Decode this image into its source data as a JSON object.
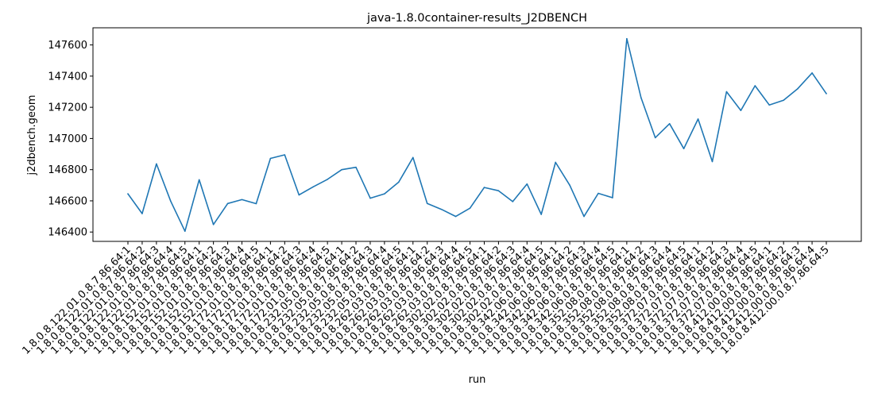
{
  "chart_data": {
    "type": "line",
    "title": "java-1.8.0container-results_J2DBENCH",
    "xlabel": "run",
    "ylabel": "j2dbench.geom",
    "ylim": [
      146340,
      147710
    ],
    "yticks": [
      146400,
      146600,
      146800,
      147000,
      147200,
      147400,
      147600
    ],
    "grid": false,
    "line_color": "#1f77b4",
    "categories": [
      "1.8.0.8.122.01.0.8.7.86.64:1",
      "1.8.0.8.122.01.0.8.7.86.64:2",
      "1.8.0.8.122.01.0.8.7.86.64:3",
      "1.8.0.8.122.01.0.8.7.86.64:4",
      "1.8.0.8.122.01.0.8.7.86.64:5",
      "1.8.0.8.152.01.0.8.7.86.64:1",
      "1.8.0.8.152.01.0.8.7.86.64:2",
      "1.8.0.8.152.01.0.8.7.86.64:3",
      "1.8.0.8.152.01.0.8.7.86.64:4",
      "1.8.0.8.152.01.0.8.7.86.64:5",
      "1.8.0.8.172.01.0.8.7.86.64:1",
      "1.8.0.8.172.01.0.8.7.86.64:2",
      "1.8.0.8.172.01.0.8.7.86.64:3",
      "1.8.0.8.172.01.0.8.7.86.64:4",
      "1.8.0.8.172.01.0.8.7.86.64:5",
      "1.8.0.8.232.05.0.8.7.86.64:1",
      "1.8.0.8.232.05.0.8.7.86.64:2",
      "1.8.0.8.232.05.0.8.7.86.64:3",
      "1.8.0.8.232.05.0.8.7.86.64:4",
      "1.8.0.8.232.05.0.8.7.86.64:5",
      "1.8.0.8.262.03.0.8.7.86.64:1",
      "1.8.0.8.262.03.0.8.7.86.64:2",
      "1.8.0.8.262.03.0.8.7.86.64:3",
      "1.8.0.8.262.03.0.8.7.86.64:4",
      "1.8.0.8.262.03.0.8.7.86.64:5",
      "1.8.0.8.302.02.0.8.7.86.64:1",
      "1.8.0.8.302.02.0.8.7.86.64:2",
      "1.8.0.8.302.02.0.8.7.86.64:3",
      "1.8.0.8.302.02.0.8.7.86.64:4",
      "1.8.0.8.302.02.0.8.7.86.64:5",
      "1.8.0.8.342.06.0.8.7.86.64:1",
      "1.8.0.8.342.06.0.8.7.86.64:2",
      "1.8.0.8.342.06.0.8.7.86.64:3",
      "1.8.0.8.342.06.0.8.7.86.64:4",
      "1.8.0.8.342.06.0.8.7.86.64:5",
      "1.8.0.8.352.08.0.8.7.86.64:1",
      "1.8.0.8.352.08.0.8.7.86.64:2",
      "1.8.0.8.352.08.0.8.7.86.64:3",
      "1.8.0.8.352.08.0.8.7.86.64:4",
      "1.8.0.8.352.08.0.8.7.86.64:5",
      "1.8.0.8.372.07.0.8.7.86.64:1",
      "1.8.0.8.372.07.0.8.7.86.64:2",
      "1.8.0.8.372.07.0.8.7.86.64:3",
      "1.8.0.8.372.07.0.8.7.86.64:4",
      "1.8.0.8.372.07.0.8.7.86.64:5",
      "1.8.0.8.412.00.0.8.7.86.64:1",
      "1.8.0.8.412.00.0.8.7.86.64:2",
      "1.8.0.8.412.00.0.8.7.86.64:3",
      "1.8.0.8.412.00.0.8.7.86.64:4",
      "1.8.0.8.412.00.0.8.7.86.64:5"
    ],
    "values": [
      146645,
      146518,
      146837,
      146598,
      146405,
      146735,
      146448,
      146583,
      146608,
      146582,
      146872,
      146895,
      146638,
      146690,
      146738,
      146800,
      146815,
      146617,
      146645,
      146720,
      146878,
      146583,
      146545,
      146500,
      146553,
      146686,
      146665,
      146595,
      146708,
      146513,
      146847,
      146700,
      146500,
      146648,
      146620,
      147640,
      147262,
      147005,
      147095,
      146935,
      147125,
      146852,
      147300,
      147180,
      147338,
      147215,
      147245,
      147320,
      147420,
      147288
    ]
  }
}
